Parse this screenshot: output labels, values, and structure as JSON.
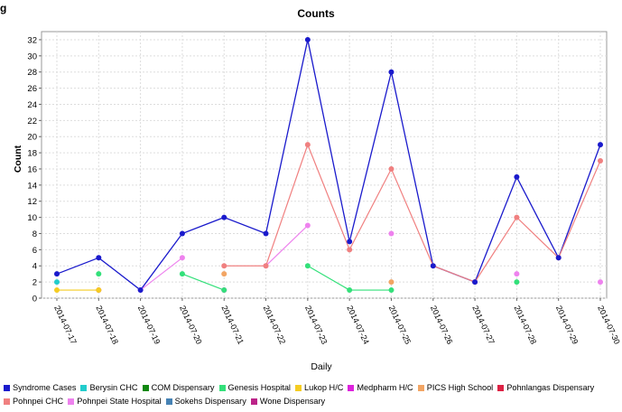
{
  "page": {
    "partial_title": "g"
  },
  "chart_data": {
    "type": "line",
    "title": "Counts",
    "xlabel": "Daily",
    "ylabel": "Count",
    "ylim": [
      0,
      33
    ],
    "yticks": [
      0,
      2,
      4,
      6,
      8,
      10,
      12,
      14,
      16,
      18,
      20,
      22,
      24,
      26,
      28,
      30,
      32
    ],
    "grid": true,
    "legend_position": "bottom",
    "categories": [
      "2014-07-17",
      "2014-07-18",
      "2014-07-19",
      "2014-07-20",
      "2014-07-21",
      "2014-07-22",
      "2014-07-23",
      "2014-07-24",
      "2014-07-25",
      "2014-07-26",
      "2014-07-27",
      "2014-07-28",
      "2014-07-29",
      "2014-07-30"
    ],
    "series": [
      {
        "name": "Syndrome Cases",
        "color": "#1a1acc",
        "values": [
          3,
          5,
          1,
          8,
          10,
          8,
          32,
          7,
          28,
          4,
          2,
          15,
          5,
          19
        ]
      },
      {
        "name": "Berysin CHC",
        "color": "#22cccc",
        "values": [
          2,
          null,
          null,
          null,
          null,
          null,
          null,
          null,
          null,
          null,
          null,
          null,
          null,
          null
        ]
      },
      {
        "name": "COM Dispensary",
        "color": "#118811",
        "values": [
          null,
          null,
          null,
          null,
          null,
          null,
          null,
          null,
          null,
          null,
          null,
          null,
          null,
          null
        ]
      },
      {
        "name": "Genesis Hospital",
        "color": "#33e07a",
        "values": [
          null,
          3,
          null,
          3,
          1,
          null,
          4,
          1,
          1,
          null,
          null,
          2,
          null,
          null
        ]
      },
      {
        "name": "Lukop H/C",
        "color": "#f5cc22",
        "values": [
          1,
          1,
          null,
          null,
          null,
          null,
          null,
          null,
          null,
          null,
          null,
          null,
          null,
          null
        ]
      },
      {
        "name": "Medpharm H/C",
        "color": "#dd22dd",
        "values": [
          null,
          null,
          null,
          null,
          1,
          null,
          null,
          null,
          null,
          null,
          null,
          null,
          null,
          null
        ]
      },
      {
        "name": "PICS High School",
        "color": "#f2a564",
        "values": [
          null,
          null,
          null,
          null,
          3,
          null,
          null,
          null,
          2,
          null,
          null,
          null,
          null,
          null
        ]
      },
      {
        "name": "Pohnlangas Dispensary",
        "color": "#dd2244",
        "values": [
          null,
          1,
          null,
          null,
          null,
          null,
          null,
          null,
          null,
          null,
          null,
          null,
          null,
          null
        ]
      },
      {
        "name": "Pohnpei CHC",
        "color": "#f08080",
        "values": [
          null,
          null,
          null,
          null,
          4,
          4,
          19,
          6,
          16,
          4,
          2,
          10,
          5,
          17
        ]
      },
      {
        "name": "Pohnpei State Hospital",
        "color": "#ee82ee",
        "values": [
          null,
          null,
          1,
          5,
          null,
          4,
          9,
          null,
          8,
          null,
          null,
          3,
          null,
          2
        ]
      },
      {
        "name": "Sokehs Dispensary",
        "color": "#4682b4",
        "values": [
          null,
          null,
          null,
          null,
          null,
          null,
          null,
          null,
          null,
          null,
          null,
          null,
          null,
          null
        ]
      },
      {
        "name": "Wone Dispensary",
        "color": "#bb2288",
        "values": [
          null,
          null,
          null,
          null,
          null,
          null,
          null,
          null,
          null,
          null,
          null,
          null,
          null,
          null
        ]
      }
    ]
  }
}
